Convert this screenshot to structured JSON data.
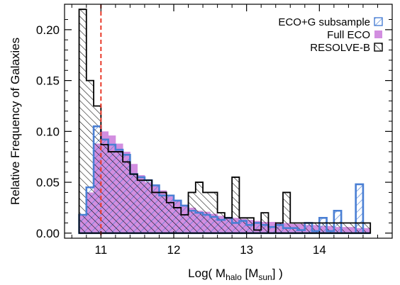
{
  "chart_data": {
    "type": "bar",
    "subtype": "step-histogram",
    "xlabel": "Log( M_halo [M_sun] )",
    "xlabel_parts": {
      "prefix": "Log( M",
      "sub1": "halo",
      "mid": " [M",
      "sub2": "sun",
      "suffix": "] )"
    },
    "ylabel": "Relative Frequency of Galaxies",
    "xlim": [
      10.5,
      15.0
    ],
    "ylim": [
      -0.005,
      0.225
    ],
    "xticks": [
      11,
      12,
      13,
      14
    ],
    "yticks": [
      0.0,
      0.05,
      0.1,
      0.15,
      0.2
    ],
    "ytick_labels": [
      "0.00",
      "0.05",
      "0.10",
      "0.15",
      "0.20"
    ],
    "grid": false,
    "legend_position": "top-right",
    "reference_line": {
      "x": 11.0,
      "color": "#e83a2a",
      "style": "dashed"
    },
    "bin_width": 0.1,
    "series": [
      {
        "name": "Full ECO",
        "style": "filled",
        "color": "#d28ee0",
        "x_start": 10.7,
        "values": [
          0.018,
          0.04,
          0.088,
          0.1,
          0.096,
          0.088,
          0.08,
          0.068,
          0.057,
          0.05,
          0.047,
          0.042,
          0.036,
          0.032,
          0.028,
          0.025,
          0.022,
          0.021,
          0.019,
          0.017,
          0.016,
          0.015,
          0.014,
          0.013,
          0.012,
          0.011,
          0.011,
          0.01,
          0.01,
          0.009,
          0.009,
          0.008,
          0.008,
          0.007,
          0.007,
          0.006,
          0.006,
          0.006,
          0.005,
          0.005
        ]
      },
      {
        "name": "ECO+G subsample",
        "style": "hatched",
        "color": "#4a7fd4",
        "x_start": 10.7,
        "values": [
          0.018,
          0.045,
          0.105,
          0.092,
          0.087,
          0.082,
          0.077,
          0.058,
          0.055,
          0.052,
          0.047,
          0.037,
          0.037,
          0.032,
          0.027,
          0.022,
          0.02,
          0.018,
          0.016,
          0.013,
          0.015,
          0.01,
          0.012,
          0.008,
          0.01,
          0.008,
          0.006,
          0.008,
          0.005,
          0.005,
          0.003,
          0.01,
          0.002,
          0.015,
          0.002,
          0.022,
          0.0,
          0.0,
          0.048,
          0.0
        ]
      },
      {
        "name": "RESOLVE-B",
        "style": "hatched",
        "color": "#000000",
        "x_start": 10.7,
        "values": [
          0.22,
          0.15,
          0.125,
          0.087,
          0.08,
          0.08,
          0.07,
          0.058,
          0.052,
          0.052,
          0.04,
          0.04,
          0.03,
          0.025,
          0.018,
          0.04,
          0.05,
          0.04,
          0.04,
          0.02,
          0.015,
          0.055,
          0.015,
          0.015,
          0.003,
          0.02,
          0.0,
          0.01,
          0.04,
          0.01,
          0.01,
          0.01,
          0.01,
          0.01,
          0.01,
          0.01,
          0.01,
          0.01,
          0.01,
          0.01
        ]
      }
    ]
  }
}
